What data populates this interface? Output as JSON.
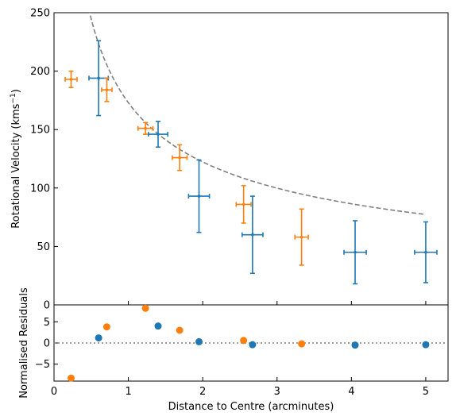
{
  "chart_data": [
    {
      "type": "scatter",
      "title": "",
      "ylabel": "Rotational Velocity (kms⁻¹)",
      "ylabel_parts": {
        "main": "Rotational Velocity (kms",
        "sup": "−1",
        "close": ")"
      },
      "xlim": [
        0,
        5.3
      ],
      "ylim": [
        0,
        250
      ],
      "yticks": [
        0,
        50,
        100,
        150,
        200,
        250
      ],
      "grid": false,
      "series": [
        {
          "color": "#1f77b4",
          "points": [
            {
              "x": 0.6,
              "y": 194,
              "xerr": 0.13,
              "yerr": 32
            },
            {
              "x": 1.4,
              "y": 146,
              "xerr": 0.13,
              "yerr": 11
            },
            {
              "x": 1.95,
              "y": 93,
              "xerr": 0.14,
              "yerr": 31
            },
            {
              "x": 2.67,
              "y": 60,
              "xerr": 0.14,
              "yerr": 33
            },
            {
              "x": 4.05,
              "y": 45,
              "xerr": 0.15,
              "yerr": 27
            },
            {
              "x": 5.0,
              "y": 45,
              "xerr": 0.15,
              "yerr": 26
            }
          ]
        },
        {
          "color": "#ff7f0e",
          "points": [
            {
              "x": 0.23,
              "y": 193,
              "xerr": 0.08,
              "yerr": 7
            },
            {
              "x": 0.71,
              "y": 184,
              "xerr": 0.07,
              "yerr": 10
            },
            {
              "x": 1.23,
              "y": 151,
              "xerr": 0.1,
              "yerr": 5
            },
            {
              "x": 1.69,
              "y": 126,
              "xerr": 0.1,
              "yerr": 11
            },
            {
              "x": 2.55,
              "y": 86,
              "xerr": 0.1,
              "yerr": 16
            },
            {
              "x": 3.33,
              "y": 58,
              "xerr": 0.09,
              "yerr": 24
            }
          ]
        }
      ],
      "model_curve": {
        "style": "dashed",
        "color": "#808080",
        "form": "v = 173 / sqrt(r)",
        "x_range": [
          0.2,
          5.0
        ]
      }
    },
    {
      "type": "scatter",
      "title": "",
      "xlabel": "Distance to Centre (arcminutes)",
      "ylabel": "Normalised Residuals",
      "xlim": [
        0,
        5.3
      ],
      "ylim": [
        -9,
        9
      ],
      "xticks": [
        0,
        1,
        2,
        3,
        4,
        5
      ],
      "yticks": [
        -5,
        0,
        5
      ],
      "grid": false,
      "zero_line": {
        "y": 0,
        "style": "dotted",
        "color": "#808080"
      },
      "series": [
        {
          "color": "#1f77b4",
          "points": [
            {
              "x": 0.6,
              "y": 1.2
            },
            {
              "x": 1.4,
              "y": 4.0
            },
            {
              "x": 1.95,
              "y": 0.3
            },
            {
              "x": 2.67,
              "y": -0.4
            },
            {
              "x": 4.05,
              "y": -0.5
            },
            {
              "x": 5.0,
              "y": -0.4
            }
          ]
        },
        {
          "color": "#ff7f0e",
          "points": [
            {
              "x": 0.23,
              "y": -8.3
            },
            {
              "x": 0.71,
              "y": 3.8
            },
            {
              "x": 1.23,
              "y": 8.2
            },
            {
              "x": 1.69,
              "y": 3.0
            },
            {
              "x": 2.55,
              "y": 0.6
            },
            {
              "x": 3.33,
              "y": -0.2
            }
          ]
        }
      ]
    }
  ]
}
